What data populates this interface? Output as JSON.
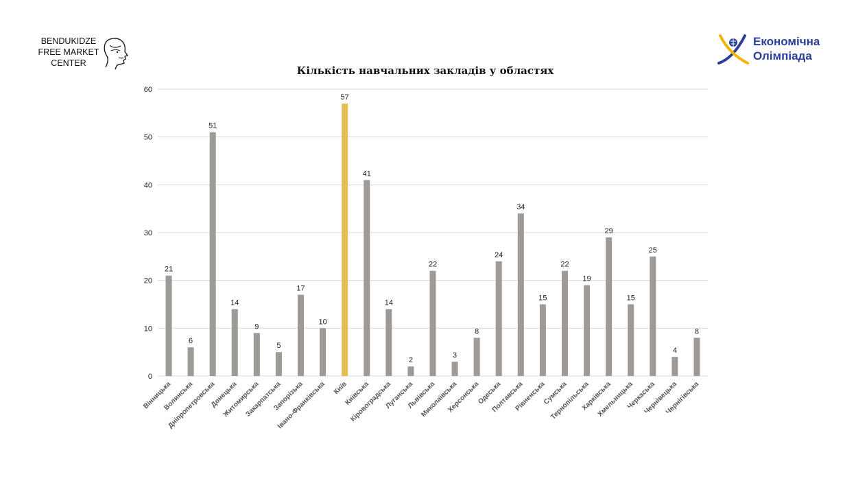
{
  "logos": {
    "left": {
      "lines": [
        "BENDUKIDZE",
        "FREE MARKET",
        "CENTER"
      ]
    },
    "right": {
      "lines": [
        "Економічна",
        "Олімпіада"
      ],
      "color": "#2a3f9b",
      "accent": "#f2b400"
    }
  },
  "chart_data": {
    "type": "bar",
    "title": "Кількість навчальних закладів у областях",
    "xlabel": "",
    "ylabel": "",
    "ylim": [
      0,
      60
    ],
    "yticks": [
      0,
      10,
      20,
      30,
      40,
      50,
      60
    ],
    "grid": true,
    "categories": [
      "Вінницька",
      "Волинська",
      "Дніпропетровська",
      "Донецька",
      "Житомирська",
      "Закарпатська",
      "Запорізька",
      "Івано-Франківська",
      "Київ",
      "Київська",
      "Кіровоградська",
      "Луганська",
      "Львівська",
      "Миколаївська",
      "Херсонська",
      "Одеська",
      "Полтавська",
      "Рівненська",
      "Сумська",
      "Тернопільська",
      "Харківська",
      "Хмельницька",
      "Черкаська",
      "Чернівецька",
      "Чернігівська"
    ],
    "values": [
      21,
      6,
      51,
      14,
      9,
      5,
      17,
      10,
      57,
      41,
      14,
      2,
      22,
      3,
      8,
      24,
      34,
      15,
      22,
      19,
      29,
      15,
      25,
      4,
      8
    ],
    "colors": {
      "default": "#9e9a97",
      "highlight": "#e3be55",
      "grid": "#d9d9d9"
    },
    "highlight_index": 8
  }
}
